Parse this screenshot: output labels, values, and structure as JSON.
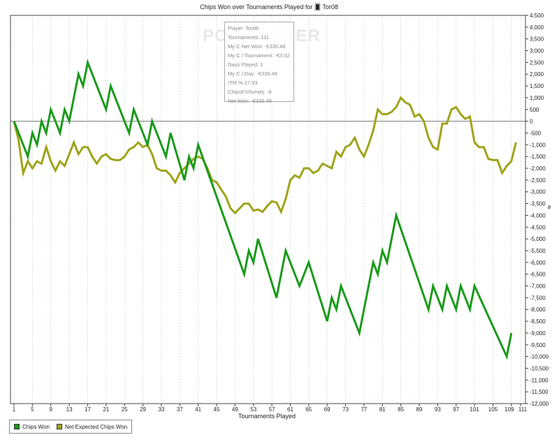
{
  "chart_data": {
    "type": "line",
    "title": "Chips Won over Tournaments Played for 🂠 Tor08",
    "xlabel": "Tournaments Played",
    "ylabel": "#",
    "xlim": [
      1,
      111
    ],
    "ylim": [
      -12000,
      4500
    ],
    "y_step": 500,
    "x_ticks": [
      1,
      5,
      9,
      13,
      17,
      21,
      25,
      29,
      33,
      37,
      41,
      45,
      49,
      53,
      57,
      61,
      65,
      69,
      73,
      77,
      81,
      85,
      89,
      93,
      97,
      101,
      105,
      109,
      111
    ],
    "grid": "vertical",
    "series": [
      {
        "name": "Chips Won",
        "color": "#1a9a1a",
        "points": [
          [
            1,
            0
          ],
          [
            4,
            -1500
          ],
          [
            5,
            -500
          ],
          [
            6,
            -1000
          ],
          [
            7,
            0
          ],
          [
            8,
            -500
          ],
          [
            9,
            500
          ],
          [
            11,
            -500
          ],
          [
            12,
            500
          ],
          [
            13,
            0
          ],
          [
            15,
            2000
          ],
          [
            16,
            1500
          ],
          [
            17,
            2500
          ],
          [
            21,
            500
          ],
          [
            22,
            1500
          ],
          [
            26,
            -500
          ],
          [
            27,
            500
          ],
          [
            30,
            -1000
          ],
          [
            31,
            0
          ],
          [
            34,
            -1500
          ],
          [
            35,
            -500
          ],
          [
            38,
            -2500
          ],
          [
            39,
            -1500
          ],
          [
            40,
            -2000
          ],
          [
            41,
            -1000
          ],
          [
            51,
            -6500
          ],
          [
            52,
            -5500
          ],
          [
            53,
            -6000
          ],
          [
            54,
            -5000
          ],
          [
            58,
            -7500
          ],
          [
            60,
            -5500
          ],
          [
            63,
            -7000
          ],
          [
            65,
            -6000
          ],
          [
            69,
            -8500
          ],
          [
            70,
            -7500
          ],
          [
            71,
            -8000
          ],
          [
            72,
            -7000
          ],
          [
            76,
            -9000
          ],
          [
            79,
            -6000
          ],
          [
            80,
            -6500
          ],
          [
            81,
            -5500
          ],
          [
            82,
            -6000
          ],
          [
            84,
            -4000
          ],
          [
            91,
            -8000
          ],
          [
            92,
            -7000
          ],
          [
            94,
            -8000
          ],
          [
            95,
            -7000
          ],
          [
            97,
            -8000
          ],
          [
            98,
            -7000
          ],
          [
            100,
            -8000
          ],
          [
            101,
            -7000
          ],
          [
            108,
            -10000
          ],
          [
            109,
            -9000
          ]
        ]
      },
      {
        "name": "Net Expected Chips Won",
        "color": "#9fa31a",
        "points": [
          [
            1,
            0
          ],
          [
            2,
            -800
          ],
          [
            3,
            -2200
          ],
          [
            4,
            -1700
          ],
          [
            5,
            -2000
          ],
          [
            6,
            -1700
          ],
          [
            7,
            -1800
          ],
          [
            8,
            -1100
          ],
          [
            9,
            -1700
          ],
          [
            10,
            -2100
          ],
          [
            11,
            -1700
          ],
          [
            12,
            -1900
          ],
          [
            13,
            -1400
          ],
          [
            14,
            -900
          ],
          [
            15,
            -1400
          ],
          [
            16,
            -1100
          ],
          [
            17,
            -1100
          ],
          [
            18,
            -1500
          ],
          [
            19,
            -1800
          ],
          [
            20,
            -1500
          ],
          [
            21,
            -1400
          ],
          [
            22,
            -1600
          ],
          [
            23,
            -1650
          ],
          [
            24,
            -1650
          ],
          [
            25,
            -1500
          ],
          [
            26,
            -1200
          ],
          [
            27,
            -1100
          ],
          [
            28,
            -900
          ],
          [
            29,
            -1100
          ],
          [
            30,
            -1000
          ],
          [
            31,
            -1400
          ],
          [
            32,
            -2000
          ],
          [
            33,
            -2100
          ],
          [
            34,
            -2100
          ],
          [
            35,
            -2300
          ],
          [
            36,
            -2600
          ],
          [
            37,
            -2200
          ],
          [
            38,
            -2000
          ],
          [
            39,
            -1800
          ],
          [
            40,
            -1600
          ],
          [
            41,
            -1500
          ],
          [
            42,
            -1600
          ],
          [
            43,
            -2000
          ],
          [
            44,
            -2500
          ],
          [
            45,
            -2600
          ],
          [
            46,
            -2900
          ],
          [
            47,
            -3200
          ],
          [
            48,
            -3700
          ],
          [
            49,
            -3900
          ],
          [
            50,
            -3700
          ],
          [
            51,
            -3500
          ],
          [
            52,
            -3500
          ],
          [
            53,
            -3800
          ],
          [
            54,
            -3750
          ],
          [
            55,
            -3850
          ],
          [
            56,
            -3600
          ],
          [
            57,
            -3400
          ],
          [
            58,
            -3450
          ],
          [
            59,
            -3850
          ],
          [
            60,
            -3300
          ],
          [
            61,
            -2500
          ],
          [
            62,
            -2300
          ],
          [
            63,
            -2400
          ],
          [
            64,
            -2000
          ],
          [
            65,
            -2000
          ],
          [
            66,
            -2200
          ],
          [
            67,
            -2100
          ],
          [
            68,
            -1800
          ],
          [
            69,
            -1900
          ],
          [
            70,
            -2000
          ],
          [
            71,
            -1300
          ],
          [
            72,
            -1500
          ],
          [
            73,
            -1100
          ],
          [
            74,
            -1000
          ],
          [
            75,
            -700
          ],
          [
            76,
            -1200
          ],
          [
            77,
            -1500
          ],
          [
            78,
            -1000
          ],
          [
            79,
            -400
          ],
          [
            80,
            500
          ],
          [
            81,
            300
          ],
          [
            82,
            300
          ],
          [
            83,
            400
          ],
          [
            84,
            600
          ],
          [
            85,
            1000
          ],
          [
            86,
            800
          ],
          [
            87,
            700
          ],
          [
            88,
            200
          ],
          [
            89,
            300
          ],
          [
            90,
            0
          ],
          [
            91,
            -700
          ],
          [
            92,
            -1100
          ],
          [
            93,
            -1200
          ],
          [
            94,
            -100
          ],
          [
            95,
            -100
          ],
          [
            96,
            500
          ],
          [
            97,
            600
          ],
          [
            98,
            300
          ],
          [
            99,
            100
          ],
          [
            100,
            200
          ],
          [
            101,
            -900
          ],
          [
            102,
            -1100
          ],
          [
            103,
            -1100
          ],
          [
            104,
            -1600
          ],
          [
            105,
            -1650
          ],
          [
            106,
            -1650
          ],
          [
            107,
            -2200
          ],
          [
            108,
            -1900
          ],
          [
            109,
            -1700
          ],
          [
            110,
            -900
          ]
        ]
      }
    ]
  },
  "tooltip": {
    "lines": [
      "Player: Tor08",
      "Tournaments: 111",
      "My C Net Won: -€335.48",
      "My C / Tournament: -€3.02",
      "Days Played: 1",
      "My C / Day: -€335.48",
      "ITM % 27.93",
      "ChipsEV/turniej: -8",
      "Net Won: -€335.48"
    ]
  },
  "watermark": "PO TRACKER",
  "legend": [
    {
      "label": "Chips Won",
      "color": "#1a9a1a"
    },
    {
      "label": "Net Expected Chips Won",
      "color": "#9fa31a"
    }
  ]
}
